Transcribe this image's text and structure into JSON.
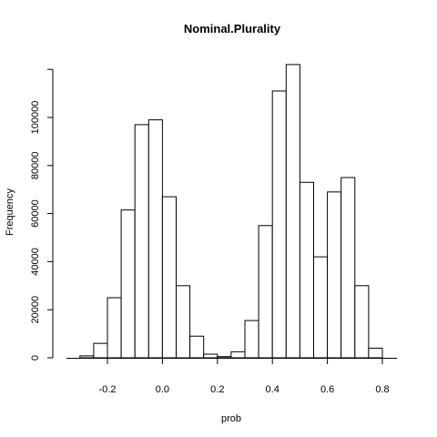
{
  "chart_data": {
    "type": "bar",
    "title": "Nominal.Plurality",
    "xlabel": "prob",
    "ylabel": "Frequency",
    "bin_width": 0.05,
    "bins": [
      {
        "x0": -0.3,
        "x1": -0.25,
        "count": 800
      },
      {
        "x0": -0.25,
        "x1": -0.2,
        "count": 6000
      },
      {
        "x0": -0.2,
        "x1": -0.15,
        "count": 25000
      },
      {
        "x0": -0.15,
        "x1": -0.1,
        "count": 61500
      },
      {
        "x0": -0.1,
        "x1": -0.05,
        "count": 97000
      },
      {
        "x0": -0.05,
        "x1": 0.0,
        "count": 99000
      },
      {
        "x0": 0.0,
        "x1": 0.05,
        "count": 67000
      },
      {
        "x0": 0.05,
        "x1": 0.1,
        "count": 30000
      },
      {
        "x0": 0.1,
        "x1": 0.15,
        "count": 9000
      },
      {
        "x0": 0.15,
        "x1": 0.2,
        "count": 1500
      },
      {
        "x0": 0.2,
        "x1": 0.25,
        "count": 500
      },
      {
        "x0": 0.25,
        "x1": 0.3,
        "count": 2500
      },
      {
        "x0": 0.3,
        "x1": 0.35,
        "count": 15500
      },
      {
        "x0": 0.35,
        "x1": 0.4,
        "count": 55000
      },
      {
        "x0": 0.4,
        "x1": 0.45,
        "count": 111000
      },
      {
        "x0": 0.45,
        "x1": 0.5,
        "count": 122000
      },
      {
        "x0": 0.5,
        "x1": 0.55,
        "count": 73000
      },
      {
        "x0": 0.55,
        "x1": 0.6,
        "count": 42000
      },
      {
        "x0": 0.6,
        "x1": 0.65,
        "count": 69000
      },
      {
        "x0": 0.65,
        "x1": 0.7,
        "count": 75000
      },
      {
        "x0": 0.7,
        "x1": 0.75,
        "count": 30000
      },
      {
        "x0": 0.75,
        "x1": 0.8,
        "count": 4000
      }
    ],
    "x_ticks": [
      {
        "value": -0.2,
        "label": "-0.2"
      },
      {
        "value": 0.0,
        "label": "0.0"
      },
      {
        "value": 0.2,
        "label": "0.2"
      },
      {
        "value": 0.4,
        "label": "0.4"
      },
      {
        "value": 0.6,
        "label": "0.6"
      },
      {
        "value": 0.8,
        "label": "0.8"
      }
    ],
    "y_ticks": [
      {
        "value": 0,
        "label": "0"
      },
      {
        "value": 20000,
        "label": "20000"
      },
      {
        "value": 40000,
        "label": "40000"
      },
      {
        "value": 60000,
        "label": "60000"
      },
      {
        "value": 80000,
        "label": "80000"
      },
      {
        "value": 100000,
        "label": "100000"
      }
    ],
    "xlim": [
      -0.35,
      0.85
    ],
    "ylim": [
      0,
      120000
    ],
    "grid": false,
    "colors": {
      "bar_fill": "#ffffff",
      "bar_stroke": "#000000"
    }
  }
}
